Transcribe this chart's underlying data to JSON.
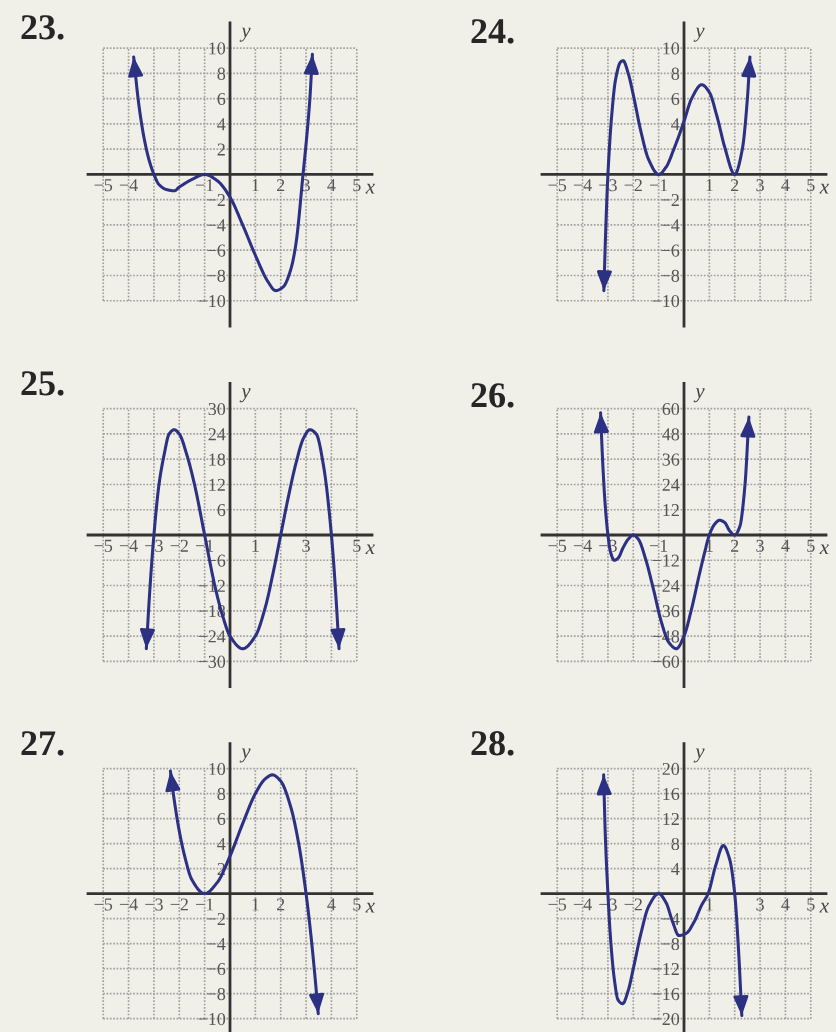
{
  "chart_data": [
    {
      "type": "line",
      "title": "23.",
      "xlabel": "x",
      "ylabel": "y",
      "color": "#2c3184",
      "grid": true,
      "xlim": [
        -5.6,
        5.6
      ],
      "ylim": [
        -12,
        12
      ],
      "xticks": [
        -5,
        -4,
        {
          "value": -3,
          "label": null
        },
        {
          "value": -2,
          "label": null
        },
        -1,
        1,
        2,
        3,
        4,
        5
      ],
      "yticks": [
        -10,
        -8,
        -6,
        -4,
        -2,
        2,
        4,
        6,
        8,
        10
      ],
      "x": [
        -3.8,
        -3.6,
        -3.4,
        -3.2,
        -3.0,
        -2.8,
        -2.5,
        -2.2,
        -2.0,
        -1.5,
        -1.0,
        -0.5,
        0,
        0.5,
        1.0,
        1.5,
        1.8,
        2.1,
        2.4,
        2.6,
        2.88,
        3.05,
        3.15,
        3.25
      ],
      "values": [
        9.3,
        5.6,
        3.0,
        1.2,
        0,
        -0.8,
        -1.2,
        -1.3,
        -1.0,
        -0.4,
        0,
        -0.5,
        -1.8,
        -4.0,
        -6.4,
        -8.5,
        -9.2,
        -8.9,
        -7.5,
        -5.5,
        0,
        3.5,
        6.0,
        9.5
      ]
    },
    {
      "type": "line",
      "title": "24.",
      "xlabel": "x",
      "ylabel": "y",
      "color": "#2c3184",
      "grid": true,
      "xlim": [
        -5.6,
        5.6
      ],
      "ylim": [
        -12,
        12
      ],
      "xticks": [
        -5,
        -4,
        -3,
        -2,
        -1,
        1,
        2,
        3,
        4,
        5
      ],
      "yticks": [
        -10,
        -8,
        -6,
        -4,
        -2,
        {
          "value": 2,
          "label": null
        },
        4,
        6,
        8,
        10
      ],
      "x": [
        -3.16,
        -3.08,
        -3.0,
        -2.85,
        -2.7,
        -2.5,
        -2.4,
        -2.2,
        -2.0,
        -1.7,
        -1.4,
        -1.0,
        -0.7,
        -0.4,
        0,
        0.3,
        0.7,
        1.0,
        1.3,
        1.6,
        2.0,
        2.3,
        2.5,
        2.6
      ],
      "values": [
        -9.2,
        -4.0,
        0,
        4.7,
        7.5,
        8.9,
        9.0,
        8.0,
        6.3,
        3.4,
        1.2,
        0,
        0.6,
        2.0,
        4.2,
        6.0,
        7.1,
        6.5,
        4.6,
        2.2,
        0,
        2.0,
        6.0,
        9.3
      ]
    },
    {
      "type": "line",
      "title": "25.",
      "xlabel": "x",
      "ylabel": "y",
      "color": "#2c3184",
      "grid": true,
      "xlim": [
        -5.6,
        5.6
      ],
      "ylim": [
        -36,
        36
      ],
      "xticks": [
        -5,
        -4,
        -3,
        -2,
        -1,
        1,
        {
          "value": 2,
          "label": null
        },
        3,
        {
          "value": 4,
          "label": null
        },
        5
      ],
      "yticks": [
        -30,
        -24,
        -18,
        -12,
        -6,
        6,
        12,
        18,
        24,
        30
      ],
      "x": [
        -3.3,
        -3.15,
        -3.0,
        -2.8,
        -2.6,
        -2.4,
        -2.2,
        -2.0,
        -1.7,
        -1.4,
        -1.0,
        -0.6,
        -0.3,
        0,
        0.5,
        1.0,
        1.4,
        1.7,
        2.0,
        2.3,
        2.6,
        2.9,
        3.15,
        3.4,
        3.7,
        4.0,
        4.15,
        4.3
      ],
      "values": [
        -27,
        -12,
        0,
        12,
        19,
        24,
        25,
        24,
        19,
        12,
        0,
        -12,
        -19,
        -24,
        -27,
        -24,
        -17,
        -9,
        0,
        9,
        17,
        23,
        25,
        24,
        16,
        0,
        -12,
        -27
      ]
    },
    {
      "type": "line",
      "title": "26.",
      "xlabel": "x",
      "ylabel": "y",
      "color": "#2c3184",
      "grid": true,
      "xlim": [
        -5.6,
        5.6
      ],
      "ylim": [
        -72,
        72
      ],
      "xticks": [
        -5,
        -4,
        -3,
        {
          "value": -2,
          "label": null
        },
        -1,
        1,
        2,
        3,
        4,
        5
      ],
      "yticks": [
        -60,
        -48,
        -36,
        -24,
        -12,
        12,
        24,
        36,
        48,
        60
      ],
      "x": [
        -3.29,
        -3.2,
        -3.1,
        -3.0,
        -2.9,
        -2.75,
        -2.6,
        -2.4,
        -2.2,
        -2.0,
        -1.8,
        -1.5,
        -1.2,
        -0.9,
        -0.6,
        -0.3,
        0,
        0.3,
        0.6,
        0.8,
        1.0,
        1.2,
        1.4,
        1.6,
        1.8,
        2.0,
        2.2,
        2.4,
        2.56
      ],
      "values": [
        58,
        33,
        13,
        0,
        -8,
        -12,
        -11,
        -6,
        -2,
        0,
        -2,
        -12,
        -26,
        -41,
        -51,
        -54,
        -48,
        -35,
        -19,
        -9,
        0,
        5,
        7,
        6,
        2,
        0,
        4,
        23,
        56
      ]
    },
    {
      "type": "line",
      "title": "27.",
      "xlabel": "x",
      "ylabel": "y",
      "color": "#2c3184",
      "grid": true,
      "xlim": [
        -5.6,
        5.6
      ],
      "ylim": [
        -11,
        12
      ],
      "xticks": [
        -5,
        -4,
        -3,
        -2,
        -1,
        1,
        2,
        {
          "value": 3,
          "label": null
        },
        4,
        5
      ],
      "yticks": [
        -10,
        -8,
        -6,
        -4,
        -2,
        2,
        4,
        6,
        8,
        10
      ],
      "x": [
        -2.35,
        -2.2,
        -2.0,
        -1.8,
        -1.5,
        -1.0,
        -0.5,
        0,
        0.5,
        1.0,
        1.4,
        1.67,
        2.0,
        2.4,
        2.7,
        3.0,
        3.2,
        3.35,
        3.48
      ],
      "values": [
        9.8,
        7.5,
        5,
        3.1,
        1.1,
        0,
        0.9,
        3,
        5.6,
        8,
        9.2,
        9.5,
        9,
        6.9,
        4.1,
        0,
        -3.5,
        -6.6,
        -9.6
      ]
    },
    {
      "type": "line",
      "title": "28.",
      "xlabel": "x",
      "ylabel": "y",
      "color": "#2c3184",
      "grid": true,
      "xlim": [
        -5.6,
        5.6
      ],
      "ylim": [
        -22,
        24
      ],
      "xticks": [
        -5,
        -4,
        -3,
        -2,
        {
          "value": -1,
          "label": null
        },
        1,
        {
          "value": 2,
          "label": null
        },
        3,
        4,
        5
      ],
      "yticks": [
        -20,
        -16,
        -12,
        -8,
        -4,
        4,
        8,
        12,
        16,
        20
      ],
      "x": [
        -3.17,
        -3.1,
        -3.0,
        -2.9,
        -2.75,
        -2.6,
        -2.42,
        -2.2,
        -2.0,
        -1.7,
        -1.4,
        -1.0,
        -0.7,
        -0.45,
        -0.2,
        0.1,
        0.4,
        0.7,
        0.95,
        1.25,
        1.55,
        1.8,
        2.0,
        2.15,
        2.28
      ],
      "values": [
        19,
        9,
        0,
        -7,
        -13.6,
        -17,
        -17.6,
        -15.5,
        -12,
        -6.4,
        -2.1,
        0,
        -1.5,
        -4.5,
        -6.7,
        -6.3,
        -4.5,
        -1.8,
        0,
        4.5,
        7.7,
        5.5,
        0,
        -9,
        -19.5
      ]
    }
  ]
}
